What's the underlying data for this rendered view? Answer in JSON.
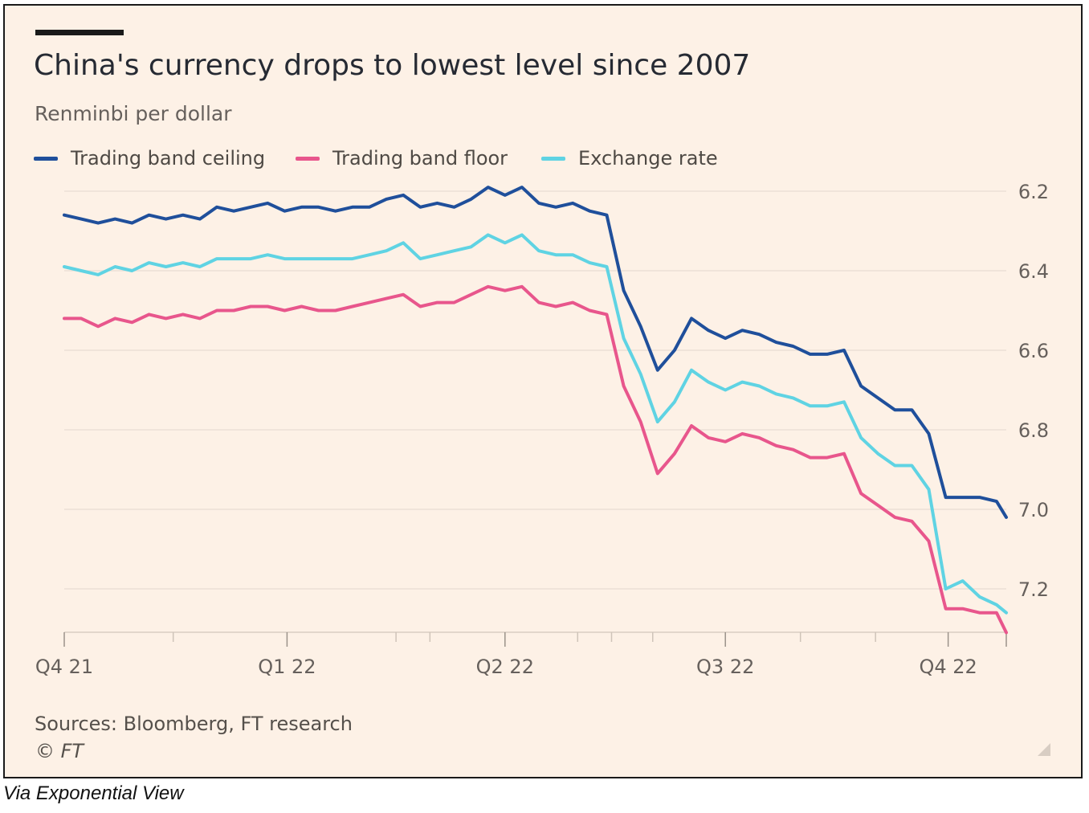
{
  "chart_data": {
    "type": "line",
    "title": "China's currency drops to lowest level since 2007",
    "subtitle": "Renminbi per dollar",
    "y_ticks": [
      "6.2",
      "6.4",
      "6.6",
      "6.8",
      "7.0",
      "7.2"
    ],
    "y_tick_values": [
      6.2,
      6.4,
      6.6,
      6.8,
      7.0,
      7.2
    ],
    "ylim": [
      6.2,
      7.31
    ],
    "y_inverted": true,
    "x_ticks": [
      "Q4 21",
      "Q1 22",
      "Q2 22",
      "Q3 22",
      "Q4 22"
    ],
    "x_range": [
      "2021-10-01",
      "2022-10-25"
    ],
    "x_tick_dates": [
      "2021-10-01",
      "2022-01-01",
      "2022-04-01",
      "2022-07-01",
      "2022-10-01"
    ],
    "x_minor_tick_dates": [
      "2021-11-15",
      "2022-02-15",
      "2022-03-01",
      "2022-05-01",
      "2022-05-15",
      "2022-06-01",
      "2022-08-01",
      "2022-09-01"
    ],
    "grid": "horizontal",
    "legend_position": "top-left",
    "series": [
      {
        "name": "Trading band ceiling",
        "color": "#1f4f9b",
        "points": [
          [
            "2021-10-01",
            6.26
          ],
          [
            "2021-10-08",
            6.27
          ],
          [
            "2021-10-15",
            6.28
          ],
          [
            "2021-10-22",
            6.27
          ],
          [
            "2021-10-29",
            6.28
          ],
          [
            "2021-11-05",
            6.26
          ],
          [
            "2021-11-12",
            6.27
          ],
          [
            "2021-11-19",
            6.26
          ],
          [
            "2021-11-26",
            6.27
          ],
          [
            "2021-12-03",
            6.24
          ],
          [
            "2021-12-10",
            6.25
          ],
          [
            "2021-12-17",
            6.24
          ],
          [
            "2021-12-24",
            6.23
          ],
          [
            "2021-12-31",
            6.25
          ],
          [
            "2022-01-07",
            6.24
          ],
          [
            "2022-01-14",
            6.24
          ],
          [
            "2022-01-21",
            6.25
          ],
          [
            "2022-01-28",
            6.24
          ],
          [
            "2022-02-04",
            6.24
          ],
          [
            "2022-02-11",
            6.22
          ],
          [
            "2022-02-18",
            6.21
          ],
          [
            "2022-02-25",
            6.24
          ],
          [
            "2022-03-04",
            6.23
          ],
          [
            "2022-03-11",
            6.24
          ],
          [
            "2022-03-18",
            6.22
          ],
          [
            "2022-03-25",
            6.19
          ],
          [
            "2022-04-01",
            6.21
          ],
          [
            "2022-04-08",
            6.19
          ],
          [
            "2022-04-15",
            6.23
          ],
          [
            "2022-04-22",
            6.24
          ],
          [
            "2022-04-29",
            6.23
          ],
          [
            "2022-05-06",
            6.25
          ],
          [
            "2022-05-13",
            6.26
          ],
          [
            "2022-05-20",
            6.45
          ],
          [
            "2022-05-27",
            6.54
          ],
          [
            "2022-06-03",
            6.65
          ],
          [
            "2022-06-10",
            6.6
          ],
          [
            "2022-06-17",
            6.52
          ],
          [
            "2022-06-24",
            6.55
          ],
          [
            "2022-07-01",
            6.57
          ],
          [
            "2022-07-08",
            6.55
          ],
          [
            "2022-07-15",
            6.56
          ],
          [
            "2022-07-22",
            6.58
          ],
          [
            "2022-07-29",
            6.59
          ],
          [
            "2022-08-05",
            6.61
          ],
          [
            "2022-08-12",
            6.61
          ],
          [
            "2022-08-19",
            6.6
          ],
          [
            "2022-08-26",
            6.69
          ],
          [
            "2022-09-02",
            6.72
          ],
          [
            "2022-09-09",
            6.75
          ],
          [
            "2022-09-16",
            6.75
          ],
          [
            "2022-09-23",
            6.81
          ],
          [
            "2022-09-30",
            6.97
          ],
          [
            "2022-10-07",
            6.97
          ],
          [
            "2022-10-14",
            6.97
          ],
          [
            "2022-10-21",
            6.98
          ],
          [
            "2022-10-25",
            7.02
          ]
        ]
      },
      {
        "name": "Trading band floor",
        "color": "#e8568c",
        "points": [
          [
            "2021-10-01",
            6.52
          ],
          [
            "2021-10-08",
            6.52
          ],
          [
            "2021-10-15",
            6.54
          ],
          [
            "2021-10-22",
            6.52
          ],
          [
            "2021-10-29",
            6.53
          ],
          [
            "2021-11-05",
            6.51
          ],
          [
            "2021-11-12",
            6.52
          ],
          [
            "2021-11-19",
            6.51
          ],
          [
            "2021-11-26",
            6.52
          ],
          [
            "2021-12-03",
            6.5
          ],
          [
            "2021-12-10",
            6.5
          ],
          [
            "2021-12-17",
            6.49
          ],
          [
            "2021-12-24",
            6.49
          ],
          [
            "2021-12-31",
            6.5
          ],
          [
            "2022-01-07",
            6.49
          ],
          [
            "2022-01-14",
            6.5
          ],
          [
            "2022-01-21",
            6.5
          ],
          [
            "2022-01-28",
            6.49
          ],
          [
            "2022-02-04",
            6.48
          ],
          [
            "2022-02-11",
            6.47
          ],
          [
            "2022-02-18",
            6.46
          ],
          [
            "2022-02-25",
            6.49
          ],
          [
            "2022-03-04",
            6.48
          ],
          [
            "2022-03-11",
            6.48
          ],
          [
            "2022-03-18",
            6.46
          ],
          [
            "2022-03-25",
            6.44
          ],
          [
            "2022-04-01",
            6.45
          ],
          [
            "2022-04-08",
            6.44
          ],
          [
            "2022-04-15",
            6.48
          ],
          [
            "2022-04-22",
            6.49
          ],
          [
            "2022-04-29",
            6.48
          ],
          [
            "2022-05-06",
            6.5
          ],
          [
            "2022-05-13",
            6.51
          ],
          [
            "2022-05-20",
            6.69
          ],
          [
            "2022-05-27",
            6.78
          ],
          [
            "2022-06-03",
            6.91
          ],
          [
            "2022-06-10",
            6.86
          ],
          [
            "2022-06-17",
            6.79
          ],
          [
            "2022-06-24",
            6.82
          ],
          [
            "2022-07-01",
            6.83
          ],
          [
            "2022-07-08",
            6.81
          ],
          [
            "2022-07-15",
            6.82
          ],
          [
            "2022-07-22",
            6.84
          ],
          [
            "2022-07-29",
            6.85
          ],
          [
            "2022-08-05",
            6.87
          ],
          [
            "2022-08-12",
            6.87
          ],
          [
            "2022-08-19",
            6.86
          ],
          [
            "2022-08-26",
            6.96
          ],
          [
            "2022-09-02",
            6.99
          ],
          [
            "2022-09-09",
            7.02
          ],
          [
            "2022-09-16",
            7.03
          ],
          [
            "2022-09-23",
            7.08
          ],
          [
            "2022-09-30",
            7.25
          ],
          [
            "2022-10-07",
            7.25
          ],
          [
            "2022-10-14",
            7.26
          ],
          [
            "2022-10-21",
            7.26
          ],
          [
            "2022-10-25",
            7.31
          ]
        ]
      },
      {
        "name": "Exchange rate",
        "color": "#5fd3e3",
        "points": [
          [
            "2021-10-01",
            6.39
          ],
          [
            "2021-10-08",
            6.4
          ],
          [
            "2021-10-15",
            6.41
          ],
          [
            "2021-10-22",
            6.39
          ],
          [
            "2021-10-29",
            6.4
          ],
          [
            "2021-11-05",
            6.38
          ],
          [
            "2021-11-12",
            6.39
          ],
          [
            "2021-11-19",
            6.38
          ],
          [
            "2021-11-26",
            6.39
          ],
          [
            "2021-12-03",
            6.37
          ],
          [
            "2021-12-10",
            6.37
          ],
          [
            "2021-12-17",
            6.37
          ],
          [
            "2021-12-24",
            6.36
          ],
          [
            "2021-12-31",
            6.37
          ],
          [
            "2022-01-07",
            6.37
          ],
          [
            "2022-01-14",
            6.37
          ],
          [
            "2022-01-21",
            6.37
          ],
          [
            "2022-01-28",
            6.37
          ],
          [
            "2022-02-04",
            6.36
          ],
          [
            "2022-02-11",
            6.35
          ],
          [
            "2022-02-18",
            6.33
          ],
          [
            "2022-02-25",
            6.37
          ],
          [
            "2022-03-04",
            6.36
          ],
          [
            "2022-03-11",
            6.35
          ],
          [
            "2022-03-18",
            6.34
          ],
          [
            "2022-03-25",
            6.31
          ],
          [
            "2022-04-01",
            6.33
          ],
          [
            "2022-04-08",
            6.31
          ],
          [
            "2022-04-15",
            6.35
          ],
          [
            "2022-04-22",
            6.36
          ],
          [
            "2022-04-29",
            6.36
          ],
          [
            "2022-05-06",
            6.38
          ],
          [
            "2022-05-13",
            6.39
          ],
          [
            "2022-05-20",
            6.57
          ],
          [
            "2022-05-27",
            6.66
          ],
          [
            "2022-06-03",
            6.78
          ],
          [
            "2022-06-10",
            6.73
          ],
          [
            "2022-06-17",
            6.65
          ],
          [
            "2022-06-24",
            6.68
          ],
          [
            "2022-07-01",
            6.7
          ],
          [
            "2022-07-08",
            6.68
          ],
          [
            "2022-07-15",
            6.69
          ],
          [
            "2022-07-22",
            6.71
          ],
          [
            "2022-07-29",
            6.72
          ],
          [
            "2022-08-05",
            6.74
          ],
          [
            "2022-08-12",
            6.74
          ],
          [
            "2022-08-19",
            6.73
          ],
          [
            "2022-08-26",
            6.82
          ],
          [
            "2022-09-02",
            6.86
          ],
          [
            "2022-09-09",
            6.89
          ],
          [
            "2022-09-16",
            6.89
          ],
          [
            "2022-09-23",
            6.95
          ],
          [
            "2022-09-30",
            7.2
          ],
          [
            "2022-10-07",
            7.18
          ],
          [
            "2022-10-14",
            7.22
          ],
          [
            "2022-10-21",
            7.24
          ],
          [
            "2022-10-25",
            7.26
          ]
        ]
      }
    ]
  },
  "footer": {
    "sources": "Sources: Bloomberg, FT research",
    "credit": "© FT"
  },
  "caption": "Via Exponential View"
}
